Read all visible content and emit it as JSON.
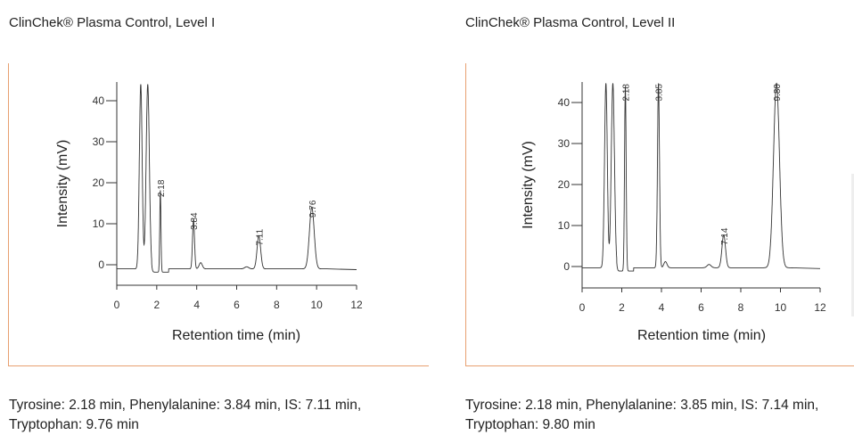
{
  "panels": [
    {
      "title": "ClinChek® Plasma Control, Level I",
      "caption_line1": "Tyrosine: 2.18 min, Phenylalanine: 3.84 min, IS: 7.11 min,",
      "caption_line2": "Tryptophan: 9.76 min"
    },
    {
      "title": "ClinChek® Plasma Control, Level II",
      "caption_line1": "Tyrosine: 2.18 min, Phenylalanine: 3.85 min, IS: 7.14 min,",
      "caption_line2": "Tryptophan: 9.80 min"
    }
  ],
  "chart_data": [
    {
      "type": "line",
      "title": "",
      "xlabel": "Retention time (min)",
      "ylabel": "Intensity (mV)",
      "xlim": [
        0,
        12
      ],
      "ylim": [
        -5,
        45
      ],
      "xticks": [
        0,
        2,
        4,
        6,
        8,
        10,
        12
      ],
      "yticks": [
        0,
        10,
        20,
        30,
        40
      ],
      "baseline": -1,
      "peaks": [
        {
          "x": 1.2,
          "y": 45,
          "w": 0.07
        },
        {
          "x": 1.55,
          "y": 45,
          "w": 0.08
        },
        {
          "x": 2.18,
          "y": 20,
          "w": 0.03,
          "label": "2.18"
        },
        {
          "x": 3.84,
          "y": 12,
          "w": 0.05,
          "label": "3.84"
        },
        {
          "x": 4.2,
          "y": 1.5,
          "w": 0.08
        },
        {
          "x": 6.5,
          "y": 0.5,
          "w": 0.1
        },
        {
          "x": 7.11,
          "y": 8,
          "w": 0.09,
          "label": "7.11"
        },
        {
          "x": 9.76,
          "y": 15,
          "w": 0.12,
          "label": "9.76"
        }
      ]
    },
    {
      "type": "line",
      "title": "",
      "xlabel": "Retention time (min)",
      "ylabel": "Intensity (mV)",
      "xlim": [
        0,
        12
      ],
      "ylim": [
        -5,
        45
      ],
      "xticks": [
        0,
        2,
        4,
        6,
        8,
        10,
        12
      ],
      "yticks": [
        0,
        10,
        20,
        30,
        40
      ],
      "baseline": -0.3,
      "peaks": [
        {
          "x": 1.2,
          "y": 45,
          "w": 0.07
        },
        {
          "x": 1.55,
          "y": 45,
          "w": 0.08
        },
        {
          "x": 2.18,
          "y": 45,
          "w": 0.04,
          "label": "2.18"
        },
        {
          "x": 3.85,
          "y": 45,
          "w": 0.05,
          "label": "3.85"
        },
        {
          "x": 4.2,
          "y": 1.5,
          "w": 0.08
        },
        {
          "x": 6.4,
          "y": 0.8,
          "w": 0.1
        },
        {
          "x": 7.14,
          "y": 8,
          "w": 0.09,
          "label": "7.14"
        },
        {
          "x": 9.8,
          "y": 45,
          "w": 0.15,
          "label": "9.80"
        }
      ]
    }
  ]
}
